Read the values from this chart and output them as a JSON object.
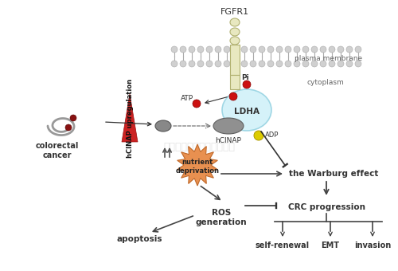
{
  "bg_color": "#ffffff",
  "watermark": "深圳子科生物科技有限公司",
  "watermark_color": "#bbbbbb",
  "watermark_alpha": 0.4,
  "elements": {
    "fgfr1_label": "FGFR1",
    "plasma_membrane_label": "plasma membrane",
    "cytoplasm_label": "cytoplasm",
    "atp_label": "ATP",
    "pi_label": "Pi",
    "ldha_label": "LDHA",
    "hcinap_label": "hCINAP",
    "adp_label": "ADP",
    "colorectal_cancer_label": "colorectal\ncancer",
    "hcinap_upregulation_label": "hCINAP upregulation",
    "nutrient_deprivation_label": "nutrient\ndeprivation",
    "warburg_label": "the Warburg effect",
    "ros_label": "ROS\ngeneration",
    "crc_label": "CRC progression",
    "apoptosis_label": "apoptosis",
    "self_renewal_label": "self-renewal",
    "emt_label": "EMT",
    "invasion_label": "invasion"
  },
  "colors": {
    "membrane_circle": "#c8c8c8",
    "membrane_line": "#aaaaaa",
    "receptor_fill": "#e8e8c0",
    "receptor_border": "#b0b070",
    "ldha_glow": "#c8eef8",
    "ldha_glow_border": "#88ccdd",
    "hcinap_fill": "#909090",
    "hcinap_border": "#606060",
    "red_dot": "#cc1111",
    "yellow_dot": "#ddcc00",
    "triangle_red": "#cc2222",
    "triangle_border": "#991111",
    "nutrient_fill": "#e89050",
    "nutrient_border": "#c06828",
    "arrow_dark": "#333333",
    "arrow_hollow": "#555555",
    "gray_oval": "#888888",
    "gray_oval_border": "#555555"
  }
}
